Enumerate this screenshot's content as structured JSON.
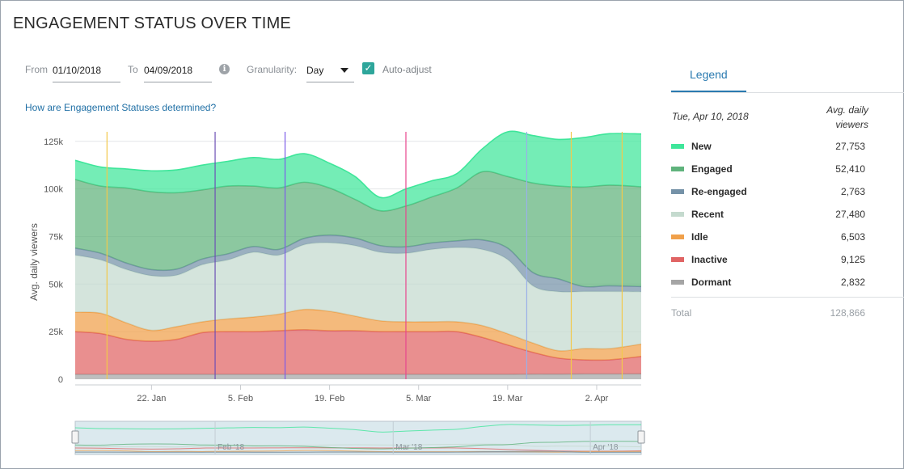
{
  "page": {
    "title": "ENGAGEMENT STATUS OVER TIME"
  },
  "filters": {
    "from_label": "From",
    "from_value": "01/10/2018",
    "to_label": "To",
    "to_value": "04/09/2018",
    "granularity_label": "Granularity:",
    "granularity_value": "Day",
    "auto_adjust_label": "Auto-adjust",
    "auto_adjust_checked": true,
    "info_icon": "info-icon"
  },
  "help_link": "How are Engagement Statuses determined?",
  "legend": {
    "tab_label": "Legend",
    "date": "Tue, Apr 10, 2018",
    "header": "Avg. daily viewers",
    "rows": [
      {
        "name": "New",
        "value": "27,753",
        "color": "#3ee69a"
      },
      {
        "name": "Engaged",
        "value": "52,410",
        "color": "#5fb37c"
      },
      {
        "name": "Re-engaged",
        "value": "2,763",
        "color": "#7592a8"
      },
      {
        "name": "Recent",
        "value": "27,480",
        "color": "#c4dace"
      },
      {
        "name": "Idle",
        "value": "6,503",
        "color": "#f0a04a"
      },
      {
        "name": "Inactive",
        "value": "9,125",
        "color": "#e06464"
      },
      {
        "name": "Dormant",
        "value": "2,832",
        "color": "#a5a5a5"
      }
    ],
    "total_label": "Total",
    "total_value": "128,866"
  },
  "chart_data": {
    "type": "area",
    "stacked": true,
    "ylabel": "Avg. daily viewers",
    "ylim": [
      0,
      130000
    ],
    "yticks": [
      0,
      25000,
      50000,
      75000,
      100000,
      125000
    ],
    "ytick_labels": [
      "0",
      "25k",
      "50k",
      "75k",
      "100k",
      "125k"
    ],
    "xlim": [
      "2018-01-10",
      "2018-04-09"
    ],
    "xticks": [
      "2018-01-22",
      "2018-02-05",
      "2018-02-19",
      "2018-03-05",
      "2018-03-19",
      "2018-04-02"
    ],
    "xtick_labels": [
      "22. Jan",
      "5. Feb",
      "19. Feb",
      "5. Mar",
      "19. Mar",
      "2. Apr"
    ],
    "grid": true,
    "x": [
      "2018-01-10",
      "2018-01-14",
      "2018-01-18",
      "2018-01-22",
      "2018-01-26",
      "2018-01-30",
      "2018-02-03",
      "2018-02-07",
      "2018-02-11",
      "2018-02-15",
      "2018-02-19",
      "2018-02-23",
      "2018-02-27",
      "2018-03-03",
      "2018-03-07",
      "2018-03-11",
      "2018-03-15",
      "2018-03-19",
      "2018-03-23",
      "2018-03-27",
      "2018-03-31",
      "2018-04-04",
      "2018-04-09"
    ],
    "series": [
      {
        "name": "Dormant",
        "color": "#a5a5a5",
        "values": [
          2600,
          2600,
          2600,
          2600,
          2600,
          2600,
          2600,
          2600,
          2600,
          2600,
          2600,
          2600,
          2600,
          2600,
          2600,
          2600,
          2600,
          2600,
          2700,
          2700,
          2800,
          2800,
          2832
        ]
      },
      {
        "name": "Inactive",
        "color": "#e06464",
        "values": [
          22400,
          21400,
          18400,
          17400,
          18400,
          21900,
          22400,
          22400,
          22900,
          23400,
          22900,
          22900,
          22400,
          22400,
          22400,
          22400,
          19400,
          15400,
          11400,
          8400,
          7400,
          7400,
          9125
        ]
      },
      {
        "name": "Idle",
        "color": "#f0a04a",
        "values": [
          10200,
          10700,
          8700,
          5700,
          6700,
          5700,
          6700,
          7700,
          8700,
          10700,
          10200,
          7700,
          5700,
          5200,
          5200,
          5200,
          6200,
          5900,
          4900,
          3900,
          5900,
          5900,
          6503
        ]
      },
      {
        "name": "Recent",
        "color": "#c4dace",
        "values": [
          30000,
          28000,
          28000,
          28700,
          27000,
          30000,
          31000,
          34000,
          31000,
          34000,
          36000,
          37000,
          36000,
          36000,
          38000,
          39000,
          40000,
          39000,
          30000,
          31000,
          30000,
          30000,
          27480
        ]
      },
      {
        "name": "Re-engaged",
        "color": "#7592a8",
        "values": [
          3700,
          3500,
          3400,
          3200,
          3200,
          3000,
          3200,
          3000,
          3000,
          3300,
          4000,
          4000,
          3500,
          3400,
          3400,
          3500,
          5000,
          6000,
          7000,
          6700,
          2600,
          3000,
          2763
        ]
      },
      {
        "name": "Engaged",
        "color": "#5fb37c",
        "values": [
          36100,
          35300,
          39400,
          40900,
          40100,
          36300,
          35600,
          31800,
          32300,
          29500,
          24800,
          20300,
          18300,
          21400,
          24100,
          27800,
          35800,
          37600,
          47100,
          48800,
          52300,
          52900,
          52410
        ]
      },
      {
        "name": "New",
        "color": "#3ee69a",
        "values": [
          10000,
          10000,
          10000,
          11000,
          12000,
          13000,
          13000,
          15000,
          15000,
          15000,
          13000,
          12000,
          7000,
          9000,
          8500,
          7500,
          12000,
          23500,
          24900,
          24500,
          26000,
          27000,
          27753
        ]
      }
    ],
    "annotations_x": [
      "2018-01-15",
      "2018-02-01",
      "2018-02-12",
      "2018-03-03",
      "2018-03-22",
      "2018-03-29",
      "2018-04-06"
    ],
    "annotation_colors": [
      "#f2c94c",
      "#6c4fb5",
      "#7c5de8",
      "#e8468e",
      "#9ab0e8",
      "#f2c94c",
      "#f2c94c"
    ],
    "navigator_labels": [
      "Feb '18",
      "Mar '18",
      "Apr '18"
    ]
  }
}
